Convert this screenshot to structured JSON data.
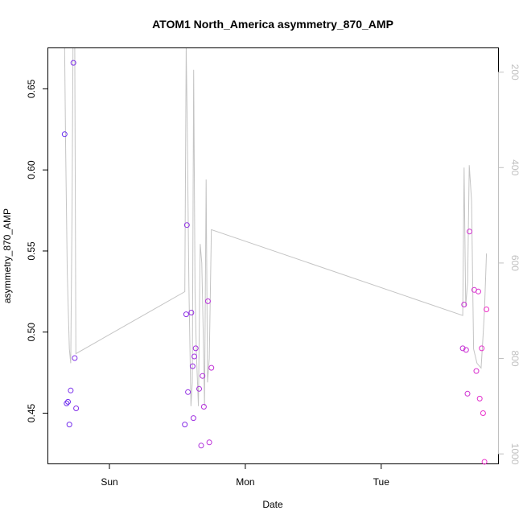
{
  "chart_data": {
    "type": "scatter",
    "title": "ATOM1 North_America asymmetry_870_AMP",
    "xlabel": "Date",
    "ylabel": "asymmetry_870_AMP",
    "x_ticks": [
      "Sun",
      "Mon",
      "Tue"
    ],
    "y_ticks": [
      "0.45",
      "0.50",
      "0.55",
      "0.60",
      "0.65"
    ],
    "y2_ticks": [
      "200",
      "400",
      "600",
      "800",
      "1000"
    ],
    "xlim_days": [
      -0.45,
      2.86
    ],
    "ylim": [
      0.419,
      0.675
    ],
    "y2lim": [
      150,
      1020
    ],
    "grid": false,
    "colors": {
      "line": "#c4c4c4",
      "axis": "#000000",
      "axis2": "#c0c0c0",
      "point_start": "#6a2ff0",
      "point_end": "#f02fc8"
    },
    "points": [
      {
        "x": -0.33,
        "y": 0.622
      },
      {
        "x": -0.315,
        "y": 0.456
      },
      {
        "x": -0.305,
        "y": 0.457
      },
      {
        "x": -0.295,
        "y": 0.443
      },
      {
        "x": -0.285,
        "y": 0.464
      },
      {
        "x": -0.265,
        "y": 0.666
      },
      {
        "x": -0.255,
        "y": 0.484
      },
      {
        "x": -0.245,
        "y": 0.453
      },
      {
        "x": 0.555,
        "y": 0.443
      },
      {
        "x": 0.565,
        "y": 0.511
      },
      {
        "x": 0.57,
        "y": 0.566
      },
      {
        "x": 0.578,
        "y": 0.463
      },
      {
        "x": 0.603,
        "y": 0.512
      },
      {
        "x": 0.612,
        "y": 0.479
      },
      {
        "x": 0.618,
        "y": 0.447
      },
      {
        "x": 0.625,
        "y": 0.485
      },
      {
        "x": 0.635,
        "y": 0.49
      },
      {
        "x": 0.66,
        "y": 0.465
      },
      {
        "x": 0.675,
        "y": 0.43
      },
      {
        "x": 0.685,
        "y": 0.473
      },
      {
        "x": 0.695,
        "y": 0.454
      },
      {
        "x": 0.725,
        "y": 0.519
      },
      {
        "x": 0.735,
        "y": 0.432
      },
      {
        "x": 0.75,
        "y": 0.478
      },
      {
        "x": 2.6,
        "y": 0.49
      },
      {
        "x": 2.61,
        "y": 0.517
      },
      {
        "x": 2.625,
        "y": 0.489
      },
      {
        "x": 2.635,
        "y": 0.462
      },
      {
        "x": 2.65,
        "y": 0.562
      },
      {
        "x": 2.685,
        "y": 0.526
      },
      {
        "x": 2.7,
        "y": 0.476
      },
      {
        "x": 2.715,
        "y": 0.525
      },
      {
        "x": 2.725,
        "y": 0.459
      },
      {
        "x": 2.74,
        "y": 0.49
      },
      {
        "x": 2.75,
        "y": 0.45
      },
      {
        "x": 2.76,
        "y": 0.42
      },
      {
        "x": 2.775,
        "y": 0.514
      }
    ],
    "line_series": [
      {
        "x": -0.33,
        "y2": 145
      },
      {
        "x": -0.322,
        "y2": 360
      },
      {
        "x": -0.31,
        "y2": 620
      },
      {
        "x": -0.295,
        "y2": 780
      },
      {
        "x": -0.285,
        "y2": 810
      },
      {
        "x": -0.275,
        "y2": 480
      },
      {
        "x": -0.268,
        "y2": 150
      },
      {
        "x": -0.255,
        "y2": 145
      },
      {
        "x": -0.247,
        "y2": 790
      },
      {
        "x": 0.555,
        "y2": 660
      },
      {
        "x": 0.565,
        "y2": 145
      },
      {
        "x": 0.572,
        "y2": 300
      },
      {
        "x": 0.585,
        "y2": 650
      },
      {
        "x": 0.6,
        "y2": 900
      },
      {
        "x": 0.61,
        "y2": 850
      },
      {
        "x": 0.62,
        "y2": 195
      },
      {
        "x": 0.63,
        "y2": 660
      },
      {
        "x": 0.64,
        "y2": 790
      },
      {
        "x": 0.655,
        "y2": 900
      },
      {
        "x": 0.668,
        "y2": 560
      },
      {
        "x": 0.68,
        "y2": 600
      },
      {
        "x": 0.69,
        "y2": 740
      },
      {
        "x": 0.7,
        "y2": 900
      },
      {
        "x": 0.712,
        "y2": 425
      },
      {
        "x": 0.722,
        "y2": 850
      },
      {
        "x": 0.735,
        "y2": 800
      },
      {
        "x": 0.75,
        "y2": 530
      },
      {
        "x": 2.6,
        "y2": 710
      },
      {
        "x": 2.61,
        "y2": 400
      },
      {
        "x": 2.622,
        "y2": 690
      },
      {
        "x": 2.636,
        "y2": 640
      },
      {
        "x": 2.648,
        "y2": 395
      },
      {
        "x": 2.665,
        "y2": 470
      },
      {
        "x": 2.68,
        "y2": 780
      },
      {
        "x": 2.705,
        "y2": 810
      },
      {
        "x": 2.735,
        "y2": 820
      },
      {
        "x": 2.748,
        "y2": 760
      },
      {
        "x": 2.76,
        "y2": 700
      },
      {
        "x": 2.775,
        "y2": 580
      }
    ]
  }
}
